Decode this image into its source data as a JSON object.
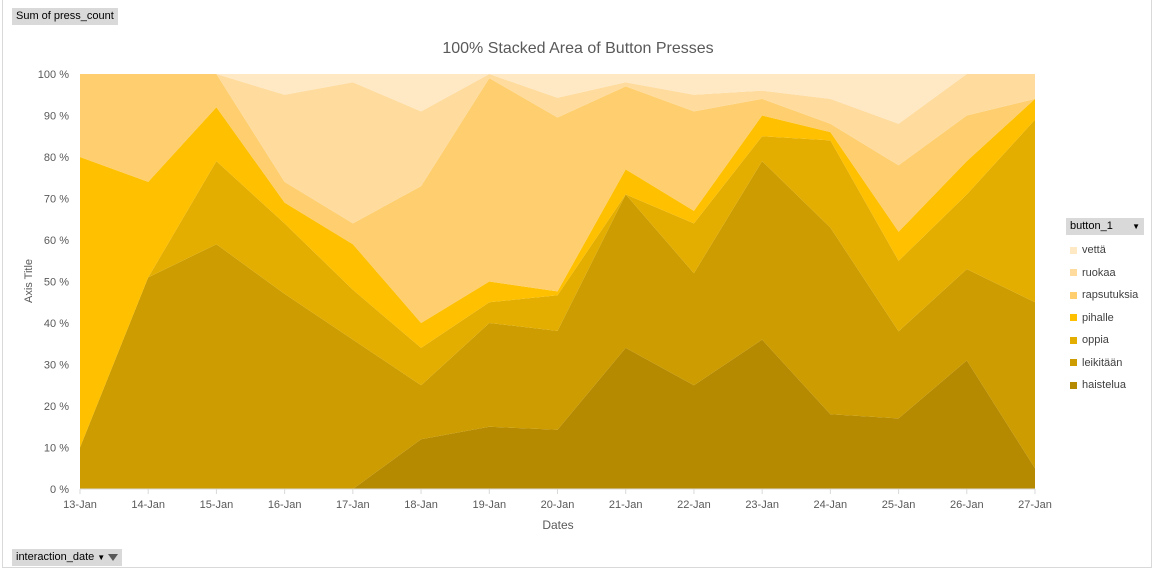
{
  "field_buttons": {
    "values": "Sum of press_count",
    "axis": "interaction_date",
    "legend": "button_1"
  },
  "chart_data": {
    "type": "area",
    "stacking": "percent",
    "title": "100% Stacked Area of Button Presses",
    "xlabel": "Dates",
    "ylabel": "Axis Title",
    "y_ticks": [
      "0 %",
      "10 %",
      "20 %",
      "30 %",
      "40 %",
      "50 %",
      "60 %",
      "70 %",
      "80 %",
      "90 %",
      "100 %"
    ],
    "ylim": [
      0,
      100
    ],
    "grid": false,
    "legend_position": "right",
    "categories": [
      "13-Jan",
      "14-Jan",
      "15-Jan",
      "16-Jan",
      "17-Jan",
      "18-Jan",
      "19-Jan",
      "20-Jan",
      "21-Jan",
      "22-Jan",
      "23-Jan",
      "24-Jan",
      "25-Jan",
      "26-Jan",
      "27-Jan"
    ],
    "series": [
      {
        "name": "haistelua",
        "color": "#b58900",
        "values": [
          0,
          0,
          0,
          0,
          0,
          12,
          15,
          15,
          34,
          25,
          36,
          18,
          17,
          31,
          5
        ]
      },
      {
        "name": "leikitään",
        "color": "#cc9c00",
        "values": [
          10,
          51,
          59,
          47,
          36,
          13,
          25,
          25,
          37,
          27,
          43,
          45,
          21,
          22,
          40
        ]
      },
      {
        "name": "oppia",
        "color": "#e4ae00",
        "values": [
          0,
          0,
          20,
          17,
          12,
          9,
          5,
          9,
          0,
          12,
          6,
          21,
          17,
          18,
          44
        ]
      },
      {
        "name": "pihalle",
        "color": "#ffc000",
        "values": [
          70,
          23,
          13,
          5,
          11,
          6,
          5,
          1,
          6,
          3,
          5,
          2,
          7,
          8,
          5
        ]
      },
      {
        "name": "rapsutuksia",
        "color": "#ffce6e",
        "values": [
          20,
          26,
          8,
          5,
          5,
          33,
          49,
          44,
          20,
          24,
          4,
          2,
          16,
          11,
          0
        ]
      },
      {
        "name": "ruokaa",
        "color": "#ffdc9e",
        "values": [
          0,
          0,
          0,
          21,
          34,
          18,
          1,
          5,
          1,
          4,
          2,
          6,
          10,
          10,
          6
        ]
      },
      {
        "name": "vettä",
        "color": "#ffe8c4",
        "values": [
          0,
          0,
          0,
          5,
          2,
          9,
          0,
          6,
          2,
          5,
          4,
          6,
          12,
          0,
          0
        ]
      }
    ]
  }
}
